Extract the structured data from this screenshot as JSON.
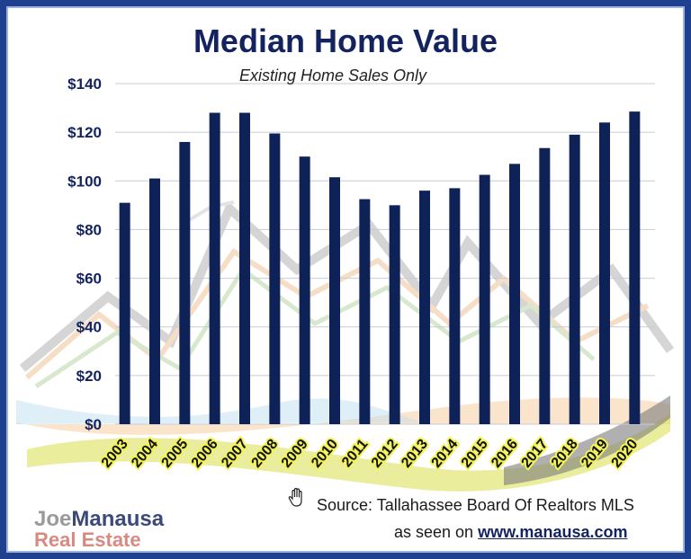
{
  "chart_data": {
    "type": "bar",
    "title": "Median Home Value",
    "subtitle": "Existing Home Sales Only",
    "categories": [
      "2003",
      "2004",
      "2005",
      "2006",
      "2007",
      "2008",
      "2009",
      "2010",
      "2011",
      "2012",
      "2013",
      "2014",
      "2015",
      "2016",
      "2017",
      "2018",
      "2019",
      "2020"
    ],
    "values": [
      91,
      101,
      116,
      128,
      128,
      119.5,
      110,
      101.5,
      92.5,
      90,
      96,
      97,
      102.5,
      107,
      113.5,
      119,
      124,
      128.5
    ],
    "ylim": [
      0,
      140
    ],
    "y_ticks": [
      0,
      20,
      40,
      60,
      80,
      100,
      120,
      140
    ],
    "y_tick_labels": [
      "$0",
      "$20",
      "$40",
      "$60",
      "$80",
      "$100",
      "$120",
      "$140"
    ],
    "bar_color": "#0f2257",
    "grid": true
  },
  "source_text": "Source: Tallahassee Board Of Realtors MLS",
  "seen_prefix": "as seen on",
  "website": "www.manausa.com",
  "logo": {
    "joe": "Joe",
    "manausa": "Manausa",
    "real_estate": "Real Estate"
  },
  "icons": {
    "hand": "hand-icon"
  }
}
